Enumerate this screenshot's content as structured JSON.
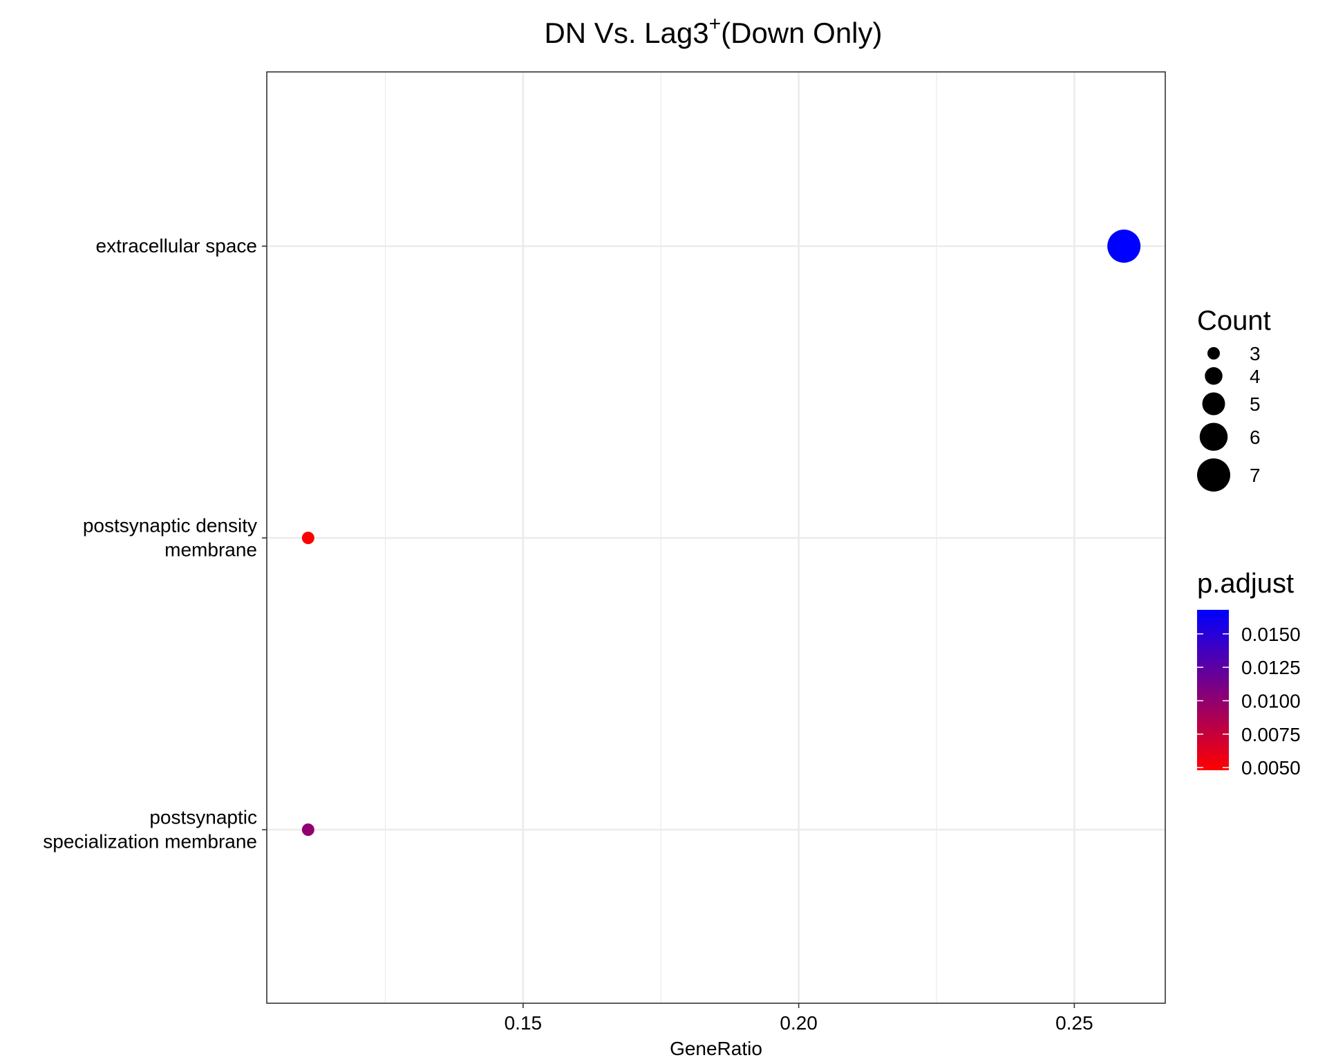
{
  "chart_data": {
    "type": "scatter",
    "title": {
      "main": "DN Vs. Lag3",
      "superscript": "+",
      "suffix": "(Down Only)"
    },
    "xlabel": "GeneRatio",
    "ylabel": "",
    "xlim": [
      0.1035,
      0.2665
    ],
    "x_ticks": [
      0.15,
      0.2,
      0.25
    ],
    "x_tick_labels": [
      "0.15",
      "0.20",
      "0.25"
    ],
    "grid": true,
    "categories": [
      {
        "lines": [
          "extracellular space"
        ]
      },
      {
        "lines": [
          "postsynaptic density",
          "membrane"
        ]
      },
      {
        "lines": [
          "postsynaptic",
          "specialization membrane"
        ]
      }
    ],
    "points": [
      {
        "category_index": 0,
        "gene_ratio": 0.259,
        "count": 7,
        "p_adjust": 0.0168
      },
      {
        "category_index": 1,
        "gene_ratio": 0.111,
        "count": 3,
        "p_adjust": 0.0048
      },
      {
        "category_index": 2,
        "gene_ratio": 0.111,
        "count": 3,
        "p_adjust": 0.01
      }
    ],
    "size_legend": {
      "title": "Count",
      "values": [
        3,
        4,
        5,
        6,
        7
      ],
      "labels": [
        "3",
        "4",
        "5",
        "6",
        "7"
      ]
    },
    "color_legend": {
      "title": "p.adjust",
      "range": [
        0.0048,
        0.0168
      ],
      "ticks": [
        0.005,
        0.0075,
        0.01,
        0.0125,
        0.015
      ],
      "tick_labels": [
        "0.0050",
        "0.0075",
        "0.0100",
        "0.0125",
        "0.0150"
      ],
      "low_color": "#ff0000",
      "high_color": "#0000ff"
    },
    "colors": {
      "grid": "#ebebeb",
      "panel_border": "#333333",
      "size_legend_dot": "#000000"
    }
  }
}
